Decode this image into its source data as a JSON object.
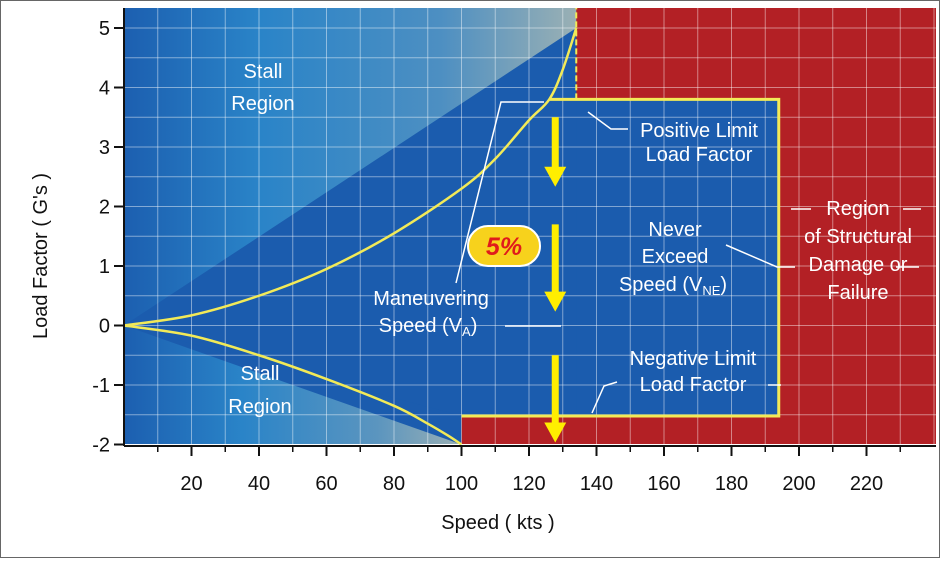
{
  "chart_data": {
    "type": "area",
    "title": "",
    "xlabel": "Speed ( kts )",
    "ylabel": "Load Factor ( G's )",
    "xlim": [
      0,
      240
    ],
    "ylim": [
      -2,
      5
    ],
    "x_ticks": [
      20,
      40,
      60,
      80,
      100,
      120,
      140,
      160,
      180,
      200,
      220
    ],
    "x_tick_labels": [
      "20",
      "40",
      "60",
      "80",
      "100",
      "120",
      "140",
      "160",
      "180",
      "200",
      "220"
    ],
    "y_ticks": [
      -2,
      -1,
      0,
      1,
      2,
      3,
      4,
      5
    ],
    "y_tick_labels": [
      "-2",
      "-1",
      "0",
      "1",
      "2",
      "3",
      "4",
      "5"
    ],
    "grid": true,
    "series": [
      {
        "name": "",
        "x": [
          0,
          20,
          40,
          60,
          80,
          100,
          110,
          120,
          126,
          130,
          134
        ],
        "y": [
          0,
          0.17,
          0.5,
          0.95,
          1.55,
          2.3,
          2.8,
          3.45,
          3.8,
          4.3,
          5.0
        ]
      },
      {
        "name": "",
        "x": [
          0,
          20,
          40,
          60,
          80,
          90,
          96,
          100
        ],
        "y": [
          0,
          -0.17,
          -0.5,
          -0.9,
          -1.35,
          -1.65,
          -1.85,
          -2.0
        ]
      }
    ],
    "limits": {
      "positive_limit_load": 3.8,
      "negative_limit_load": -1.52,
      "maneuvering_speed": 126,
      "never_exceed_speed": 194
    },
    "annotations": {
      "stall_upper": [
        "Stall",
        "Region"
      ],
      "stall_lower": [
        "Stall",
        "Region"
      ],
      "positive_limit": [
        "Positive Limit",
        "Load Factor"
      ],
      "negative_limit": [
        "Negative Limit",
        "Load Factor"
      ],
      "never_exceed": [
        "Never",
        "Exceed",
        "Speed (V",
        "NE",
        ")"
      ],
      "maneuvering": [
        "Maneuvering",
        "Speed (V",
        "A",
        ")"
      ],
      "structural": [
        "Region",
        "of Structural",
        "Damage or",
        "Failure"
      ],
      "badge": "5%"
    },
    "colors": {
      "envelope": "#1b5cae",
      "envelope_dark": "#174c98",
      "stall_fade": "#9ab0b4",
      "structural": "#b32025",
      "curve": "#f2ea58",
      "arrow": "#ffee00",
      "badge_fill": "#f7d21c",
      "badge_text": "#e01b1b"
    }
  }
}
